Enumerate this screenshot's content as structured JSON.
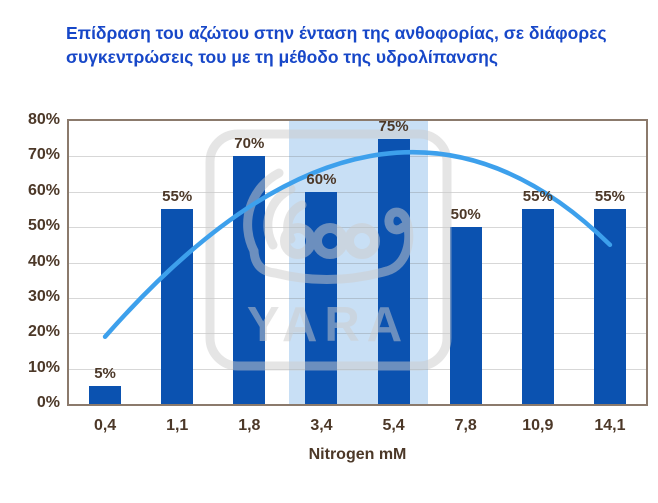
{
  "title": {
    "text": "Επίδραση του αζώτου στην ένταση της ανθοφορίας, σε διάφορες συγκεντρώσεις του με τη μέθοδο της υδρολίπανσης"
  },
  "chart_data": {
    "type": "bar",
    "title": "Επίδραση του αζώτου στην ένταση της ανθοφορίας, σε διάφορες συγκεντρώσεις του με τη μέθοδο της υδρολίπανσης",
    "categories": [
      "0,4",
      "1,1",
      "1,8",
      "3,4",
      "5,4",
      "7,8",
      "10,9",
      "14,1"
    ],
    "values": [
      5,
      55,
      70,
      60,
      75,
      50,
      55,
      55
    ],
    "bar_labels": [
      "5%",
      "55%",
      "70%",
      "60%",
      "75%",
      "50%",
      "55%",
      "55%"
    ],
    "xlabel": "Nitrogen mM",
    "ylabel": "",
    "ylim": [
      0,
      80
    ],
    "yticks": [
      "0%",
      "10%",
      "20%",
      "30%",
      "40%",
      "50%",
      "60%",
      "70%",
      "80%"
    ],
    "grid": true,
    "legend": "none",
    "highlight_band": {
      "from_slot": 3,
      "to_slot": 5,
      "color": "#c8dff5",
      "note": "highlights categories 3,4 and 5,4"
    },
    "trend": {
      "shape": "second-order trend curve",
      "start_slot": 0.5,
      "start_pct": 19,
      "peak_slot": 5.0,
      "peak_pct": 71,
      "end_slot": 7.5,
      "end_pct": 45,
      "color": "#3da0ec"
    },
    "watermark": {
      "text": "YARA",
      "logo": "yara-viking-ship-logo"
    },
    "colors": {
      "bar": "#0b52b0",
      "title": "#1747c8",
      "axis_text": "#4c3828",
      "plot_border": "#8b7a6c",
      "gridline": "#d6d6d6",
      "background": "#ffffff",
      "watermark": "#cccccc"
    }
  }
}
